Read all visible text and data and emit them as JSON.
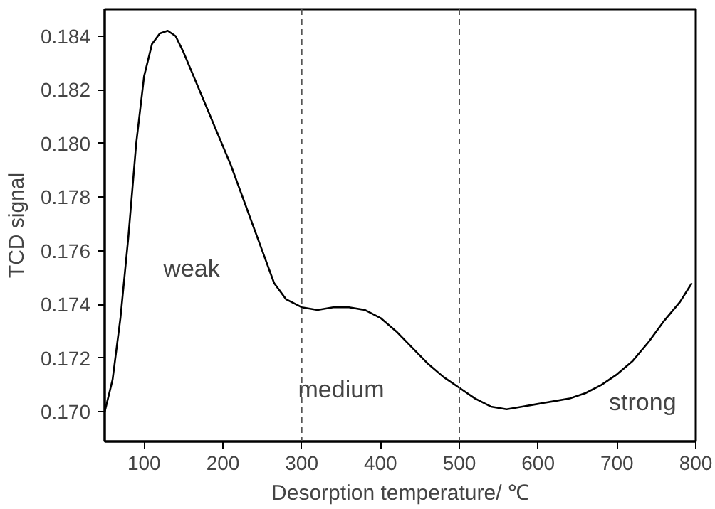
{
  "chart_data": {
    "type": "line",
    "xlabel": "Desorption temperature/ ℃",
    "ylabel": "TCD signal",
    "x": [
      50,
      60,
      70,
      80,
      90,
      100,
      110,
      120,
      130,
      140,
      150,
      170,
      190,
      210,
      230,
      250,
      265,
      280,
      300,
      320,
      340,
      360,
      380,
      400,
      420,
      440,
      460,
      480,
      500,
      520,
      540,
      560,
      580,
      600,
      620,
      640,
      660,
      680,
      700,
      720,
      740,
      760,
      780,
      795
    ],
    "series": [
      {
        "color": "#000000",
        "values": [
          0.17,
          0.1712,
          0.1735,
          0.1765,
          0.18,
          0.1825,
          0.1837,
          0.1841,
          0.1842,
          0.184,
          0.1834,
          0.182,
          0.1806,
          0.1792,
          0.1776,
          0.176,
          0.1748,
          0.1742,
          0.1739,
          0.1738,
          0.1739,
          0.1739,
          0.1738,
          0.1735,
          0.173,
          0.1724,
          0.1718,
          0.1713,
          0.1709,
          0.1705,
          0.1702,
          0.1701,
          0.1702,
          0.1703,
          0.1704,
          0.1705,
          0.1707,
          0.171,
          0.1714,
          0.1719,
          0.1726,
          0.1734,
          0.1741,
          0.1748
        ]
      }
    ],
    "xlim": [
      50,
      800
    ],
    "ylim": [
      0.1689,
      0.185
    ],
    "xticks": [
      100,
      200,
      300,
      400,
      500,
      600,
      700,
      800
    ],
    "yticks": [
      {
        "value": 0.17,
        "label": "0.170"
      },
      {
        "value": 0.172,
        "label": "0.172"
      },
      {
        "value": 0.174,
        "label": "0.174"
      },
      {
        "value": 0.176,
        "label": "0.176"
      },
      {
        "value": 0.178,
        "label": "0.178"
      },
      {
        "value": 0.18,
        "label": "0.180"
      },
      {
        "value": 0.182,
        "label": "0.182"
      },
      {
        "value": 0.184,
        "label": "0.184"
      }
    ],
    "ref_lines": [
      {
        "axis": "x",
        "value": 300,
        "color": "#555555",
        "line_style": "dashed"
      },
      {
        "axis": "x",
        "value": 500,
        "color": "#555555",
        "line_style": "dashed"
      }
    ],
    "annotations": [
      "weak",
      "medium",
      "strong"
    ],
    "grid": false,
    "marker": "none",
    "line_style": "solid"
  }
}
